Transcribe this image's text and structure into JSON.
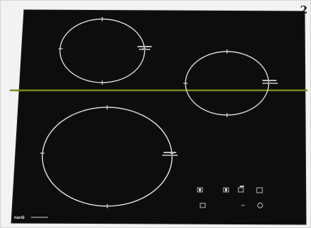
{
  "figure": {
    "number": "2"
  },
  "hob": {
    "surface_color": "#0d0d0d",
    "zone_ring_color": "#d9d9d9",
    "accent_line_color": "#7a8a1e",
    "brand": "nardi",
    "zones": [
      {
        "id": "rear-left"
      },
      {
        "id": "rear-right"
      },
      {
        "id": "front-left"
      }
    ],
    "controls_count": 8
  }
}
